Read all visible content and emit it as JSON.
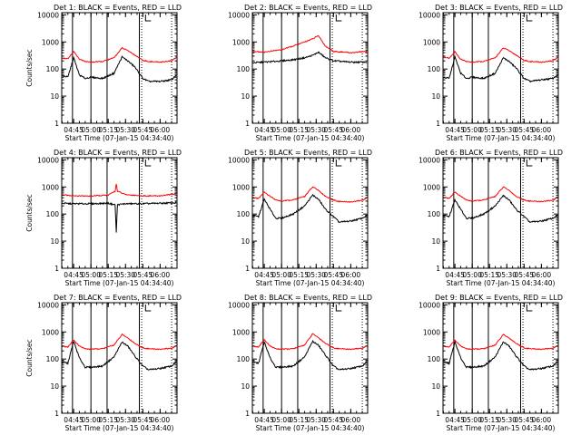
{
  "colors": {
    "events": "#000000",
    "lld": "#ff0000",
    "axis": "#000000"
  },
  "layout": {
    "rows": 3,
    "cols": 3
  },
  "chart_data": [
    {
      "type": "line",
      "title": "Det 1: BLACK = Events, RED = LLD",
      "xlabel": "Start Time (07-Jan-15 04:34:40)",
      "ylabel": "Counts/sec",
      "yscale": "log",
      "ylim": [
        1,
        12000
      ],
      "xlim": [
        "04:34:40",
        "06:14:40"
      ],
      "xticks": [
        "04:45",
        "05:00",
        "05:15",
        "05:30",
        "05:45",
        "06:00"
      ],
      "yticks": [
        "1",
        "10",
        "100",
        "1000",
        "10000"
      ],
      "vlines_solid": [
        "04:44",
        "05:00",
        "05:14",
        "05:42"
      ],
      "vlines_dotted": [
        "05:44",
        "06:10"
      ],
      "series": [
        {
          "name": "BLACK = Events",
          "x": [
            "04:34",
            "04:40",
            "04:45",
            "04:50",
            "04:55",
            "05:00",
            "05:10",
            "05:20",
            "05:27",
            "05:32",
            "05:38",
            "05:45",
            "05:50",
            "06:00",
            "06:10",
            "06:14"
          ],
          "values": [
            60,
            50,
            260,
            60,
            45,
            50,
            45,
            70,
            280,
            200,
            120,
            45,
            35,
            35,
            40,
            60
          ]
        },
        {
          "name": "RED = LLD",
          "x": [
            "04:34",
            "04:40",
            "04:45",
            "04:50",
            "04:55",
            "05:00",
            "05:10",
            "05:20",
            "05:27",
            "05:32",
            "05:38",
            "05:45",
            "05:50",
            "06:00",
            "06:10",
            "06:14"
          ],
          "values": [
            260,
            240,
            450,
            230,
            190,
            180,
            190,
            260,
            600,
            480,
            330,
            210,
            190,
            180,
            200,
            270
          ]
        }
      ]
    },
    {
      "type": "line",
      "title": "Det 2: BLACK = Events, RED = LLD",
      "xlabel": "Start Time (07-Jan-15 04:34:40)",
      "ylabel": "",
      "yscale": "log",
      "ylim": [
        1,
        12000
      ],
      "xlim": [
        "04:34:40",
        "06:14:40"
      ],
      "xticks": [
        "04:45",
        "05:00",
        "05:15",
        "05:30",
        "05:45",
        "06:00"
      ],
      "yticks": [
        "1",
        "10",
        "100",
        "1000",
        "10000"
      ],
      "vlines_solid": [
        "04:44",
        "05:00",
        "05:14",
        "05:42"
      ],
      "vlines_dotted": [
        "05:44",
        "06:10"
      ],
      "series": [
        {
          "name": "BLACK = Events",
          "x": [
            "04:34",
            "04:45",
            "05:00",
            "05:10",
            "05:20",
            "05:27",
            "05:32",
            "05:38",
            "05:45",
            "06:00",
            "06:14"
          ],
          "values": [
            170,
            180,
            200,
            220,
            260,
            320,
            420,
            260,
            200,
            180,
            180
          ]
        },
        {
          "name": "RED = LLD",
          "x": [
            "04:34",
            "04:45",
            "05:00",
            "05:10",
            "05:20",
            "05:27",
            "05:32",
            "05:38",
            "05:45",
            "06:00",
            "06:14"
          ],
          "values": [
            450,
            420,
            520,
            700,
            1000,
            1300,
            1700,
            700,
            450,
            400,
            450
          ]
        }
      ]
    },
    {
      "type": "line",
      "title": "Det 3: BLACK = Events, RED = LLD",
      "xlabel": "Start Time (07-Jan-15 04:34:40)",
      "ylabel": "",
      "yscale": "log",
      "ylim": [
        1,
        12000
      ],
      "xlim": [
        "04:34:40",
        "06:14:40"
      ],
      "xticks": [
        "04:45",
        "05:00",
        "05:15",
        "05:30",
        "05:45",
        "06:00"
      ],
      "yticks": [
        "1",
        "10",
        "100",
        "1000",
        "10000"
      ],
      "vlines_solid": [
        "04:44",
        "05:00",
        "05:14",
        "05:42"
      ],
      "vlines_dotted": [
        "05:44",
        "06:10"
      ],
      "series": [
        {
          "name": "BLACK = Events",
          "x": [
            "04:34",
            "04:40",
            "04:45",
            "04:50",
            "04:55",
            "05:00",
            "05:10",
            "05:20",
            "05:27",
            "05:32",
            "05:38",
            "05:45",
            "05:50",
            "06:00",
            "06:10",
            "06:14"
          ],
          "values": [
            50,
            45,
            280,
            70,
            45,
            50,
            45,
            70,
            260,
            190,
            110,
            45,
            35,
            40,
            45,
            60
          ]
        },
        {
          "name": "RED = LLD",
          "x": [
            "04:34",
            "04:40",
            "04:45",
            "04:50",
            "04:55",
            "05:00",
            "05:10",
            "05:20",
            "05:27",
            "05:32",
            "05:38",
            "05:45",
            "05:50",
            "06:00",
            "06:10",
            "06:14"
          ],
          "values": [
            280,
            250,
            430,
            230,
            190,
            180,
            190,
            260,
            600,
            480,
            330,
            210,
            190,
            180,
            200,
            270
          ]
        }
      ]
    },
    {
      "type": "line",
      "title": "Det 4: BLACK = Events, RED = LLD",
      "xlabel": "Start Time (07-Jan-15 04:34:40)",
      "ylabel": "Counts/sec",
      "yscale": "log",
      "ylim": [
        1,
        12000
      ],
      "xlim": [
        "04:34:40",
        "06:14:40"
      ],
      "xticks": [
        "04:45",
        "05:00",
        "05:15",
        "05:30",
        "05:45",
        "06:00"
      ],
      "yticks": [
        "1",
        "10",
        "100",
        "1000",
        "10000"
      ],
      "vlines_solid": [
        "04:44",
        "05:00",
        "05:14",
        "05:42"
      ],
      "vlines_dotted": [
        "05:44",
        "06:10"
      ],
      "series": [
        {
          "name": "BLACK = Events",
          "x": [
            "04:34",
            "04:45",
            "05:00",
            "05:15",
            "05:21",
            "05:22",
            "05:23",
            "05:30",
            "05:45",
            "06:00",
            "06:14"
          ],
          "values": [
            250,
            240,
            240,
            250,
            220,
            20,
            220,
            240,
            240,
            250,
            260
          ]
        },
        {
          "name": "RED = LLD",
          "x": [
            "04:34",
            "04:45",
            "05:00",
            "05:15",
            "05:21",
            "05:22",
            "05:23",
            "05:30",
            "05:45",
            "06:00",
            "06:14"
          ],
          "values": [
            520,
            470,
            460,
            500,
            700,
            1300,
            700,
            520,
            470,
            470,
            560
          ]
        }
      ]
    },
    {
      "type": "line",
      "title": "Det 5: BLACK = Events, RED = LLD",
      "xlabel": "Start Time (07-Jan-15 04:34:40)",
      "ylabel": "",
      "yscale": "log",
      "ylim": [
        1,
        12000
      ],
      "xlim": [
        "04:34:40",
        "06:14:40"
      ],
      "xticks": [
        "04:45",
        "05:00",
        "05:15",
        "05:30",
        "05:45",
        "06:00"
      ],
      "yticks": [
        "1",
        "10",
        "100",
        "1000",
        "10000"
      ],
      "vlines_solid": [
        "04:44",
        "05:00",
        "05:14",
        "05:42"
      ],
      "vlines_dotted": [
        "05:44",
        "06:10"
      ],
      "series": [
        {
          "name": "BLACK = Events",
          "x": [
            "04:34",
            "04:40",
            "04:45",
            "04:50",
            "04:55",
            "05:00",
            "05:10",
            "05:20",
            "05:27",
            "05:32",
            "05:38",
            "05:45",
            "05:50",
            "06:00",
            "06:10",
            "06:14"
          ],
          "values": [
            90,
            80,
            350,
            150,
            70,
            70,
            100,
            200,
            500,
            350,
            150,
            80,
            50,
            55,
            70,
            90
          ]
        },
        {
          "name": "RED = LLD",
          "x": [
            "04:34",
            "04:40",
            "04:45",
            "04:50",
            "04:55",
            "05:00",
            "05:10",
            "05:20",
            "05:27",
            "05:32",
            "05:38",
            "05:45",
            "05:50",
            "06:00",
            "06:10",
            "06:14"
          ],
          "values": [
            400,
            380,
            650,
            450,
            330,
            300,
            330,
            450,
            1000,
            750,
            450,
            330,
            290,
            280,
            320,
            400
          ]
        }
      ]
    },
    {
      "type": "line",
      "title": "Det 6: BLACK = Events, RED = LLD",
      "xlabel": "Start Time (07-Jan-15 04:34:40)",
      "ylabel": "",
      "yscale": "log",
      "ylim": [
        1,
        12000
      ],
      "xlim": [
        "04:34:40",
        "06:14:40"
      ],
      "xticks": [
        "04:45",
        "05:00",
        "05:15",
        "05:30",
        "05:45",
        "06:00"
      ],
      "yticks": [
        "1",
        "10",
        "100",
        "1000",
        "10000"
      ],
      "vlines_solid": [
        "04:44",
        "05:00",
        "05:14",
        "05:42"
      ],
      "vlines_dotted": [
        "05:44",
        "06:10"
      ],
      "series": [
        {
          "name": "BLACK = Events",
          "x": [
            "04:34",
            "04:40",
            "04:45",
            "04:50",
            "04:55",
            "05:00",
            "05:10",
            "05:20",
            "05:27",
            "05:32",
            "05:38",
            "05:45",
            "05:50",
            "06:00",
            "06:10",
            "06:14"
          ],
          "values": [
            90,
            80,
            330,
            150,
            70,
            70,
            100,
            200,
            480,
            330,
            150,
            80,
            50,
            55,
            70,
            90
          ]
        },
        {
          "name": "RED = LLD",
          "x": [
            "04:34",
            "04:40",
            "04:45",
            "04:50",
            "04:55",
            "05:00",
            "05:10",
            "05:20",
            "05:27",
            "05:32",
            "05:38",
            "05:45",
            "05:50",
            "06:00",
            "06:10",
            "06:14"
          ],
          "values": [
            420,
            380,
            650,
            450,
            330,
            300,
            330,
            450,
            1000,
            750,
            450,
            330,
            300,
            290,
            320,
            420
          ]
        }
      ]
    },
    {
      "type": "line",
      "title": "Det 7: BLACK = Events, RED = LLD",
      "xlabel": "Start Time (07-Jan-15 04:34:40)",
      "ylabel": "Counts/sec",
      "yscale": "log",
      "ylim": [
        1,
        12000
      ],
      "xlim": [
        "04:34:40",
        "06:14:40"
      ],
      "xticks": [
        "04:45",
        "05:00",
        "05:15",
        "05:30",
        "05:45",
        "06:00"
      ],
      "yticks": [
        "1",
        "10",
        "100",
        "1000",
        "10000"
      ],
      "vlines_solid": [
        "04:44",
        "05:00",
        "05:14",
        "05:42"
      ],
      "vlines_dotted": [
        "05:44",
        "06:10"
      ],
      "series": [
        {
          "name": "BLACK = Events",
          "x": [
            "04:34",
            "04:40",
            "04:45",
            "04:50",
            "04:55",
            "05:00",
            "05:10",
            "05:20",
            "05:27",
            "05:32",
            "05:38",
            "05:45",
            "05:50",
            "06:00",
            "06:10",
            "06:14"
          ],
          "values": [
            80,
            70,
            450,
            110,
            50,
            50,
            55,
            120,
            420,
            300,
            130,
            55,
            40,
            45,
            55,
            80
          ]
        },
        {
          "name": "RED = LLD",
          "x": [
            "04:34",
            "04:40",
            "04:45",
            "04:50",
            "04:55",
            "05:00",
            "05:10",
            "05:20",
            "05:27",
            "05:32",
            "05:38",
            "05:45",
            "05:50",
            "06:00",
            "06:10",
            "06:14"
          ],
          "values": [
            300,
            280,
            500,
            300,
            240,
            230,
            240,
            330,
            800,
            600,
            380,
            260,
            240,
            230,
            250,
            300
          ]
        }
      ]
    },
    {
      "type": "line",
      "title": "Det 8: BLACK = Events, RED = LLD",
      "xlabel": "Start Time (07-Jan-15 04:34:40)",
      "ylabel": "",
      "yscale": "log",
      "ylim": [
        1,
        12000
      ],
      "xlim": [
        "04:34:40",
        "06:14:40"
      ],
      "xticks": [
        "04:45",
        "05:00",
        "05:15",
        "05:30",
        "05:45",
        "06:00"
      ],
      "yticks": [
        "1",
        "10",
        "100",
        "1000",
        "10000"
      ],
      "vlines_solid": [
        "04:44",
        "05:00",
        "05:14",
        "05:42"
      ],
      "vlines_dotted": [
        "05:44",
        "06:10"
      ],
      "series": [
        {
          "name": "BLACK = Events",
          "x": [
            "04:34",
            "04:40",
            "04:45",
            "04:50",
            "04:55",
            "05:00",
            "05:10",
            "05:20",
            "05:27",
            "05:32",
            "05:38",
            "05:45",
            "05:50",
            "06:00",
            "06:10",
            "06:14"
          ],
          "values": [
            80,
            70,
            420,
            110,
            50,
            50,
            55,
            120,
            450,
            320,
            140,
            55,
            40,
            45,
            55,
            80
          ]
        },
        {
          "name": "RED = LLD",
          "x": [
            "04:34",
            "04:40",
            "04:45",
            "04:50",
            "04:55",
            "05:00",
            "05:10",
            "05:20",
            "05:27",
            "05:32",
            "05:38",
            "05:45",
            "05:50",
            "06:00",
            "06:10",
            "06:14"
          ],
          "values": [
            300,
            280,
            520,
            300,
            240,
            230,
            240,
            330,
            850,
            620,
            380,
            260,
            240,
            230,
            250,
            300
          ]
        }
      ]
    },
    {
      "type": "line",
      "title": "Det 9: BLACK = Events, RED = LLD",
      "xlabel": "Start Time (07-Jan-15 04:34:40)",
      "ylabel": "",
      "yscale": "log",
      "ylim": [
        1,
        12000
      ],
      "xlim": [
        "04:34:40",
        "06:14:40"
      ],
      "xticks": [
        "04:45",
        "05:00",
        "05:15",
        "05:30",
        "05:45",
        "06:00"
      ],
      "yticks": [
        "1",
        "10",
        "100",
        "1000",
        "10000"
      ],
      "vlines_solid": [
        "04:44",
        "05:00",
        "05:14",
        "05:42"
      ],
      "vlines_dotted": [
        "05:44",
        "06:10"
      ],
      "series": [
        {
          "name": "BLACK = Events",
          "x": [
            "04:34",
            "04:40",
            "04:45",
            "04:50",
            "04:55",
            "05:00",
            "05:10",
            "05:20",
            "05:27",
            "05:32",
            "05:38",
            "05:45",
            "05:50",
            "06:00",
            "06:10",
            "06:14"
          ],
          "values": [
            80,
            70,
            420,
            110,
            50,
            50,
            55,
            120,
            430,
            300,
            130,
            55,
            40,
            45,
            55,
            80
          ]
        },
        {
          "name": "RED = LLD",
          "x": [
            "04:34",
            "04:40",
            "04:45",
            "04:50",
            "04:55",
            "05:00",
            "05:10",
            "05:20",
            "05:27",
            "05:32",
            "05:38",
            "05:45",
            "05:50",
            "06:00",
            "06:10",
            "06:14"
          ],
          "values": [
            300,
            280,
            500,
            300,
            240,
            230,
            240,
            330,
            800,
            600,
            380,
            260,
            240,
            230,
            250,
            300
          ]
        }
      ]
    }
  ]
}
